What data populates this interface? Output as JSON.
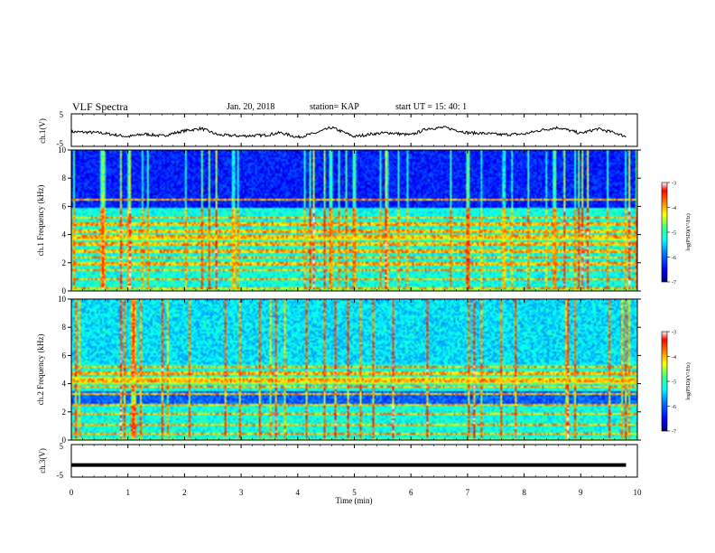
{
  "header": {
    "title": "VLF Spectra",
    "date": "Jan. 20, 2018",
    "station": "station= KAP",
    "start_time": "start  UT =  15: 40: 1"
  },
  "colors": {
    "line": "#000000",
    "colormap": [
      "#000080",
      "#0000ff",
      "#0080ff",
      "#00ffff",
      "#40ff80",
      "#ffff00",
      "#ff8000",
      "#ff0000",
      "#ffffff"
    ]
  },
  "chart_data": [
    {
      "type": "line",
      "panel": "ch1-waveform",
      "ylabel": "ch.1(V)",
      "yticks": [
        "5",
        "-5"
      ],
      "ylim": [
        -5,
        5
      ],
      "xlim": [
        0,
        10
      ],
      "description_series": "quasi-periodic oscillation around -1.5 V with amplitude ~1.5 V",
      "x": [
        0.0,
        0.5,
        1.0,
        1.3,
        1.6,
        2.0,
        2.3,
        2.6,
        3.0,
        3.4,
        3.7,
        4.0,
        4.3,
        4.6,
        5.0,
        5.3,
        5.6,
        6.0,
        6.3,
        6.6,
        7.0,
        7.3,
        7.6,
        8.0,
        8.3,
        8.6,
        9.0,
        9.3,
        9.6,
        9.8
      ],
      "y": [
        -0.5,
        -0.8,
        -2.0,
        -1.2,
        -1.8,
        -0.2,
        0.5,
        -1.5,
        -1.8,
        -1.6,
        -0.8,
        -2.2,
        -1.0,
        0.8,
        -2.0,
        -1.2,
        -0.8,
        -1.5,
        0.5,
        0.8,
        -0.8,
        -1.0,
        -1.4,
        -1.2,
        0.0,
        0.8,
        -1.0,
        0.4,
        -0.8,
        -2.0
      ]
    },
    {
      "type": "heatmap",
      "panel": "ch1-spectrogram",
      "ylabel": "ch.1 Frequency (kHz)",
      "yticks": [
        "0",
        "2",
        "4",
        "6",
        "8",
        "10"
      ],
      "ylim": [
        0,
        10
      ],
      "xlim": [
        0,
        10
      ],
      "colorbar": {
        "label": "log(PSD)(V²/Hz)",
        "ticks": [
          "-3",
          "-4",
          "-5",
          "-6",
          "-7"
        ],
        "range": [
          -7,
          -3
        ]
      },
      "bands_khz": [
        0.3,
        0.9,
        1.5,
        2.0,
        2.4,
        2.9,
        3.4,
        3.9,
        4.3,
        4.8,
        5.3,
        6.5
      ],
      "bright_band_khz": [
        3.6,
        4.1
      ],
      "dark_region_khz": [
        6.0,
        10.0
      ]
    },
    {
      "type": "heatmap",
      "panel": "ch2-spectrogram",
      "ylabel": "ch.2 Frequency (kHz)",
      "yticks": [
        "0",
        "2",
        "4",
        "6",
        "8",
        "10"
      ],
      "ylim": [
        0,
        10
      ],
      "xlim": [
        0,
        10
      ],
      "colorbar": {
        "label": "log(PSD)(V²/Hz)",
        "ticks": [
          "-3",
          "-4",
          "-5",
          "-6",
          "-7"
        ],
        "range": [
          -7,
          -3
        ]
      },
      "bands_khz": [
        0.5,
        1.2,
        1.9,
        2.6,
        3.3,
        3.8,
        4.3,
        4.8,
        5.3
      ],
      "bright_band_khz": [
        4.0,
        4.6
      ],
      "dark_region_khz": [
        2.5,
        3.5
      ]
    },
    {
      "type": "line",
      "panel": "ch3-waveform",
      "ylabel": "ch.3(V)",
      "yticks": [
        "5",
        "-5"
      ],
      "ylim": [
        -5,
        5
      ],
      "xlim": [
        0,
        10
      ],
      "x": [
        0,
        9.8
      ],
      "y": [
        -1.3,
        -1.3
      ]
    }
  ],
  "xaxis": {
    "label": "Time (min)",
    "ticks": [
      "0",
      "1",
      "2",
      "3",
      "4",
      "5",
      "6",
      "7",
      "8",
      "9",
      "10"
    ]
  }
}
